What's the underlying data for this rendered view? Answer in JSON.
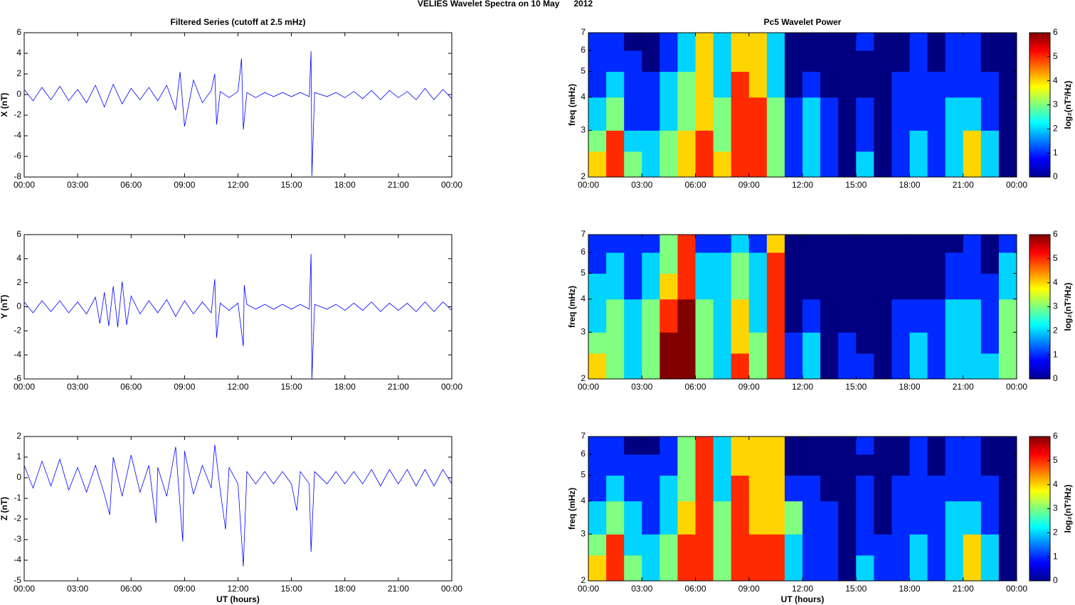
{
  "title": "VELIES Wavelet Spectra on 10 May      2012",
  "chart_data": [
    {
      "type": "line",
      "title": "Filtered Series (cutoff at 2.5 mHz)",
      "ylabel": "X (nT)",
      "color": "#0000ff",
      "xlim": [
        0,
        24
      ],
      "ylim": [
        -8,
        6
      ],
      "yticks": [
        -8,
        -6,
        -4,
        -2,
        0,
        2,
        4,
        6
      ],
      "xticks": [
        {
          "value": 0,
          "label": "00:00"
        },
        {
          "value": 3,
          "label": "03:00"
        },
        {
          "value": 6,
          "label": "06:00"
        },
        {
          "value": 9,
          "label": "09:00"
        },
        {
          "value": 12,
          "label": "12:00"
        },
        {
          "value": 15,
          "label": "15:00"
        },
        {
          "value": 18,
          "label": "18:00"
        },
        {
          "value": 21,
          "label": "21:00"
        },
        {
          "value": 24,
          "label": "00:00"
        }
      ],
      "x": [
        0,
        0.5,
        1,
        1.5,
        2,
        2.5,
        3,
        3.5,
        4,
        4.5,
        5,
        5.5,
        6,
        6.5,
        7,
        7.5,
        8,
        8.5,
        8.75,
        9,
        9.5,
        10,
        10.5,
        10.7,
        10.8,
        11,
        11.5,
        12,
        12.2,
        12.3,
        12.5,
        13,
        13.5,
        14,
        14.5,
        15,
        15.5,
        16,
        16.1,
        16.15,
        16.3,
        17,
        17.5,
        18,
        18.5,
        19,
        19.5,
        20,
        20.5,
        21,
        21.5,
        22,
        22.5,
        23,
        23.5,
        24
      ],
      "values": [
        0.5,
        -0.6,
        0.7,
        -0.5,
        0.8,
        -0.6,
        0.5,
        -0.8,
        0.9,
        -1.2,
        1.0,
        -0.9,
        0.6,
        -0.5,
        0.7,
        -0.6,
        0.9,
        -1.5,
        2.2,
        -3.1,
        1.4,
        -0.8,
        0.4,
        2.0,
        -2.9,
        0.3,
        -0.3,
        0.3,
        3.5,
        -3.4,
        0.2,
        -0.3,
        0.2,
        -0.2,
        0.2,
        -0.2,
        0.2,
        -0.2,
        4.2,
        -7.9,
        0.2,
        -0.2,
        0.2,
        -0.3,
        0.3,
        -0.4,
        0.4,
        -0.5,
        0.4,
        -0.3,
        0.3,
        -0.5,
        0.6,
        -0.5,
        0.5,
        -0.4
      ]
    },
    {
      "type": "heatmap",
      "title": "Pc5 Wavelet Power",
      "ylabel": "freq (mHz)",
      "colormap": "jet",
      "xlim": [
        0,
        24
      ],
      "ylim": [
        2,
        7
      ],
      "ylog": true,
      "yticks": [
        2,
        3,
        4,
        5,
        6,
        7
      ],
      "xticks": [
        {
          "value": 0,
          "label": "00:00"
        },
        {
          "value": 3,
          "label": "03:00"
        },
        {
          "value": 6,
          "label": "06:00"
        },
        {
          "value": 9,
          "label": "09:00"
        },
        {
          "value": 12,
          "label": "12:00"
        },
        {
          "value": 15,
          "label": "15:00"
        },
        {
          "value": 18,
          "label": "18:00"
        },
        {
          "value": 21,
          "label": "21:00"
        },
        {
          "value": 24,
          "label": "00:00"
        }
      ],
      "xbins": [
        0,
        1,
        2,
        3,
        4,
        5,
        6,
        7,
        8,
        9,
        10,
        11,
        12,
        13,
        14,
        15,
        16,
        17,
        18,
        19,
        20,
        21,
        22,
        23,
        24
      ],
      "ybins": [
        2,
        2.5,
        3,
        4,
        5,
        6,
        7
      ],
      "values": [
        [
          4,
          5,
          3,
          2,
          3,
          4,
          5,
          4,
          5,
          5,
          3,
          1,
          2,
          1,
          0,
          2,
          0,
          1,
          2,
          1,
          2,
          4,
          2,
          0
        ],
        [
          3,
          5,
          2,
          2,
          3,
          4,
          5,
          3,
          5,
          5,
          3,
          1,
          2,
          1,
          0,
          1,
          0,
          1,
          2,
          1,
          2,
          4,
          2,
          0
        ],
        [
          2,
          3,
          1,
          1,
          2,
          3,
          4,
          3,
          5,
          5,
          3,
          1,
          2,
          1,
          0,
          1,
          0,
          1,
          1,
          1,
          2,
          2,
          1,
          0
        ],
        [
          1,
          2,
          1,
          1,
          2,
          3,
          4,
          2,
          5,
          4,
          2,
          0,
          1,
          0,
          0,
          0,
          0,
          1,
          1,
          1,
          1,
          1,
          1,
          0
        ],
        [
          1,
          1,
          1,
          0,
          1,
          2,
          4,
          2,
          4,
          4,
          2,
          0,
          0,
          0,
          0,
          0,
          0,
          0,
          1,
          0,
          1,
          1,
          0,
          0
        ],
        [
          1,
          1,
          0,
          0,
          1,
          2,
          4,
          2,
          4,
          4,
          2,
          0,
          0,
          0,
          0,
          1,
          0,
          0,
          1,
          0,
          1,
          1,
          0,
          0
        ]
      ],
      "colorbar": {
        "label": "log₂(nT²/Hz)",
        "lim": [
          0,
          6
        ],
        "ticks": [
          0,
          1,
          2,
          3,
          4,
          5,
          6
        ]
      }
    },
    {
      "type": "line",
      "ylabel": "Y (nT)",
      "color": "#0000ff",
      "xlim": [
        0,
        24
      ],
      "ylim": [
        -6,
        6
      ],
      "yticks": [
        -6,
        -4,
        -2,
        0,
        2,
        4,
        6
      ],
      "xticks": [
        {
          "value": 0,
          "label": "00:00"
        },
        {
          "value": 3,
          "label": "03:00"
        },
        {
          "value": 6,
          "label": "06:00"
        },
        {
          "value": 9,
          "label": "09:00"
        },
        {
          "value": 12,
          "label": "12:00"
        },
        {
          "value": 15,
          "label": "15:00"
        },
        {
          "value": 18,
          "label": "18:00"
        },
        {
          "value": 21,
          "label": "21:00"
        },
        {
          "value": 24,
          "label": "00:00"
        }
      ],
      "x": [
        0,
        0.5,
        1,
        1.5,
        2,
        2.5,
        3,
        3.5,
        4,
        4.25,
        4.5,
        4.75,
        5,
        5.25,
        5.5,
        5.75,
        6,
        6.5,
        7,
        7.5,
        8,
        8.5,
        9,
        9.5,
        10,
        10.5,
        10.7,
        10.8,
        11,
        11.5,
        12,
        12.3,
        12.35,
        12.5,
        13,
        13.5,
        14,
        14.5,
        15,
        15.5,
        16,
        16.1,
        16.15,
        16.3,
        17,
        17.5,
        18,
        18.5,
        19,
        19.5,
        20,
        20.5,
        21,
        21.5,
        22,
        22.5,
        23,
        23.5,
        24
      ],
      "values": [
        0.4,
        -0.5,
        0.5,
        -0.4,
        0.5,
        -0.5,
        0.4,
        -0.6,
        0.8,
        -1.4,
        1.2,
        -1.6,
        1.7,
        -1.7,
        2.1,
        -1.5,
        0.9,
        -0.6,
        0.5,
        -0.5,
        0.6,
        -0.8,
        0.5,
        -0.6,
        0.4,
        -0.5,
        2.3,
        -2.6,
        0.3,
        -0.3,
        0.3,
        -3.3,
        1.8,
        0.2,
        -0.2,
        0.2,
        -0.2,
        0.2,
        -0.2,
        0.2,
        -0.2,
        4.4,
        -6.0,
        0.2,
        -0.2,
        0.2,
        -0.3,
        0.3,
        -0.3,
        0.4,
        -0.4,
        0.3,
        -0.3,
        0.3,
        -0.4,
        0.4,
        -0.4,
        0.4,
        -0.3
      ]
    },
    {
      "type": "heatmap",
      "ylabel": "freq (mHz)",
      "colormap": "jet",
      "xlim": [
        0,
        24
      ],
      "ylim": [
        2,
        7
      ],
      "ylog": true,
      "yticks": [
        2,
        3,
        4,
        5,
        6,
        7
      ],
      "xticks": [
        {
          "value": 0,
          "label": "00:00"
        },
        {
          "value": 3,
          "label": "03:00"
        },
        {
          "value": 6,
          "label": "06:00"
        },
        {
          "value": 9,
          "label": "09:00"
        },
        {
          "value": 12,
          "label": "12:00"
        },
        {
          "value": 15,
          "label": "15:00"
        },
        {
          "value": 18,
          "label": "18:00"
        },
        {
          "value": 21,
          "label": "21:00"
        },
        {
          "value": 24,
          "label": "00:00"
        }
      ],
      "xbins": [
        0,
        1,
        2,
        3,
        4,
        5,
        6,
        7,
        8,
        9,
        10,
        11,
        12,
        13,
        14,
        15,
        16,
        17,
        18,
        19,
        20,
        21,
        22,
        23,
        24
      ],
      "ybins": [
        2,
        2.5,
        3,
        4,
        5,
        6,
        7
      ],
      "values": [
        [
          4,
          3,
          2,
          3,
          6,
          6,
          3,
          2,
          5,
          3,
          5,
          1,
          2,
          0,
          1,
          1,
          0,
          1,
          2,
          1,
          2,
          2,
          2,
          3
        ],
        [
          3,
          3,
          2,
          3,
          6,
          6,
          3,
          2,
          4,
          3,
          5,
          1,
          2,
          0,
          1,
          0,
          0,
          1,
          2,
          1,
          2,
          2,
          1,
          3
        ],
        [
          2,
          3,
          2,
          3,
          5,
          6,
          3,
          2,
          4,
          2,
          5,
          0,
          1,
          0,
          0,
          0,
          0,
          1,
          1,
          1,
          2,
          2,
          1,
          3
        ],
        [
          2,
          2,
          1,
          2,
          4,
          5,
          2,
          2,
          3,
          2,
          5,
          0,
          0,
          0,
          0,
          0,
          0,
          0,
          0,
          0,
          1,
          1,
          1,
          2
        ],
        [
          1,
          2,
          1,
          2,
          3,
          5,
          2,
          2,
          3,
          2,
          5,
          0,
          0,
          0,
          0,
          0,
          0,
          0,
          0,
          0,
          1,
          1,
          0,
          2
        ],
        [
          1,
          1,
          1,
          1,
          3,
          5,
          1,
          1,
          2,
          1,
          4,
          0,
          0,
          0,
          0,
          0,
          0,
          0,
          0,
          0,
          0,
          1,
          0,
          1
        ]
      ],
      "colorbar": {
        "label": "log₂(nT²/Hz)",
        "lim": [
          0,
          6
        ],
        "ticks": [
          0,
          1,
          2,
          3,
          4,
          5,
          6
        ]
      }
    },
    {
      "type": "line",
      "ylabel": "Z (nT)",
      "xlabel": "UT (hours)",
      "color": "#0000ff",
      "xlim": [
        0,
        24
      ],
      "ylim": [
        -5,
        2
      ],
      "yticks": [
        -5,
        -4,
        -3,
        -2,
        -1,
        0,
        1,
        2
      ],
      "xticks": [
        {
          "value": 0,
          "label": "00:00"
        },
        {
          "value": 3,
          "label": "03:00"
        },
        {
          "value": 6,
          "label": "06:00"
        },
        {
          "value": 9,
          "label": "09:00"
        },
        {
          "value": 12,
          "label": "12:00"
        },
        {
          "value": 15,
          "label": "15:00"
        },
        {
          "value": 18,
          "label": "18:00"
        },
        {
          "value": 21,
          "label": "21:00"
        },
        {
          "value": 24,
          "label": "00:00"
        }
      ],
      "x": [
        0,
        0.5,
        1,
        1.5,
        2,
        2.5,
        3,
        3.5,
        4,
        4.5,
        4.8,
        5,
        5.5,
        6,
        6.5,
        7,
        7.4,
        7.5,
        8,
        8.5,
        8.9,
        9,
        9.5,
        10,
        10.5,
        10.7,
        11,
        11.3,
        11.5,
        12,
        12.3,
        12.5,
        13,
        13.5,
        14,
        14.5,
        15,
        15.3,
        15.5,
        16,
        16.1,
        16.3,
        17,
        17.5,
        18,
        18.5,
        19,
        19.5,
        20,
        20.5,
        21,
        21.5,
        22,
        22.5,
        23,
        23.5,
        24
      ],
      "values": [
        0.6,
        -0.5,
        0.8,
        -0.4,
        0.9,
        -0.6,
        0.5,
        -0.7,
        0.6,
        -0.8,
        -1.8,
        1.0,
        -0.9,
        1.1,
        -0.7,
        0.6,
        -2.2,
        0.5,
        -0.9,
        1.5,
        -3.1,
        1.3,
        -0.8,
        0.6,
        -0.5,
        1.6,
        -0.6,
        -2.5,
        0.5,
        -0.3,
        -4.3,
        0.3,
        -0.3,
        0.3,
        -0.3,
        0.3,
        -0.3,
        -1.6,
        0.3,
        -0.3,
        -3.6,
        0.3,
        -0.3,
        0.3,
        -0.3,
        0.3,
        -0.3,
        0.4,
        -0.4,
        0.4,
        -0.3,
        0.4,
        -0.4,
        0.4,
        -0.4,
        0.4,
        -0.3
      ]
    },
    {
      "type": "heatmap",
      "ylabel": "freq (mHz)",
      "xlabel": "UT (hours)",
      "colormap": "jet",
      "xlim": [
        0,
        24
      ],
      "ylim": [
        2,
        7
      ],
      "ylog": true,
      "yticks": [
        2,
        3,
        4,
        5,
        6,
        7
      ],
      "xticks": [
        {
          "value": 0,
          "label": "00:00"
        },
        {
          "value": 3,
          "label": "03:00"
        },
        {
          "value": 6,
          "label": "06:00"
        },
        {
          "value": 9,
          "label": "09:00"
        },
        {
          "value": 12,
          "label": "12:00"
        },
        {
          "value": 15,
          "label": "15:00"
        },
        {
          "value": 18,
          "label": "18:00"
        },
        {
          "value": 21,
          "label": "21:00"
        },
        {
          "value": 24,
          "label": "00:00"
        }
      ],
      "xbins": [
        0,
        1,
        2,
        3,
        4,
        5,
        6,
        7,
        8,
        9,
        10,
        11,
        12,
        13,
        14,
        15,
        16,
        17,
        18,
        19,
        20,
        21,
        22,
        23,
        24
      ],
      "ybins": [
        2,
        2.5,
        3,
        4,
        5,
        6,
        7
      ],
      "values": [
        [
          4,
          5,
          3,
          2,
          3,
          5,
          5,
          3,
          5,
          5,
          5,
          2,
          1,
          1,
          0,
          2,
          1,
          1,
          2,
          1,
          2,
          4,
          2,
          0
        ],
        [
          3,
          5,
          2,
          2,
          3,
          5,
          5,
          3,
          5,
          5,
          5,
          2,
          1,
          1,
          0,
          1,
          1,
          1,
          2,
          1,
          2,
          4,
          2,
          0
        ],
        [
          2,
          3,
          2,
          1,
          2,
          4,
          5,
          3,
          5,
          4,
          4,
          3,
          1,
          1,
          0,
          1,
          0,
          1,
          1,
          1,
          2,
          2,
          1,
          0
        ],
        [
          1,
          2,
          1,
          1,
          2,
          3,
          5,
          2,
          5,
          4,
          4,
          1,
          1,
          0,
          0,
          1,
          0,
          1,
          1,
          1,
          1,
          1,
          1,
          0
        ],
        [
          1,
          1,
          1,
          1,
          1,
          3,
          5,
          2,
          4,
          4,
          4,
          0,
          0,
          0,
          0,
          0,
          0,
          0,
          1,
          0,
          1,
          1,
          0,
          0
        ],
        [
          1,
          1,
          0,
          0,
          1,
          3,
          5,
          2,
          4,
          4,
          4,
          0,
          0,
          0,
          0,
          1,
          0,
          0,
          1,
          0,
          1,
          1,
          0,
          0
        ]
      ],
      "colorbar": {
        "label": "log₂(nT²/Hz)",
        "lim": [
          0,
          6
        ],
        "ticks": [
          0,
          1,
          2,
          3,
          4,
          5,
          6
        ]
      }
    }
  ]
}
